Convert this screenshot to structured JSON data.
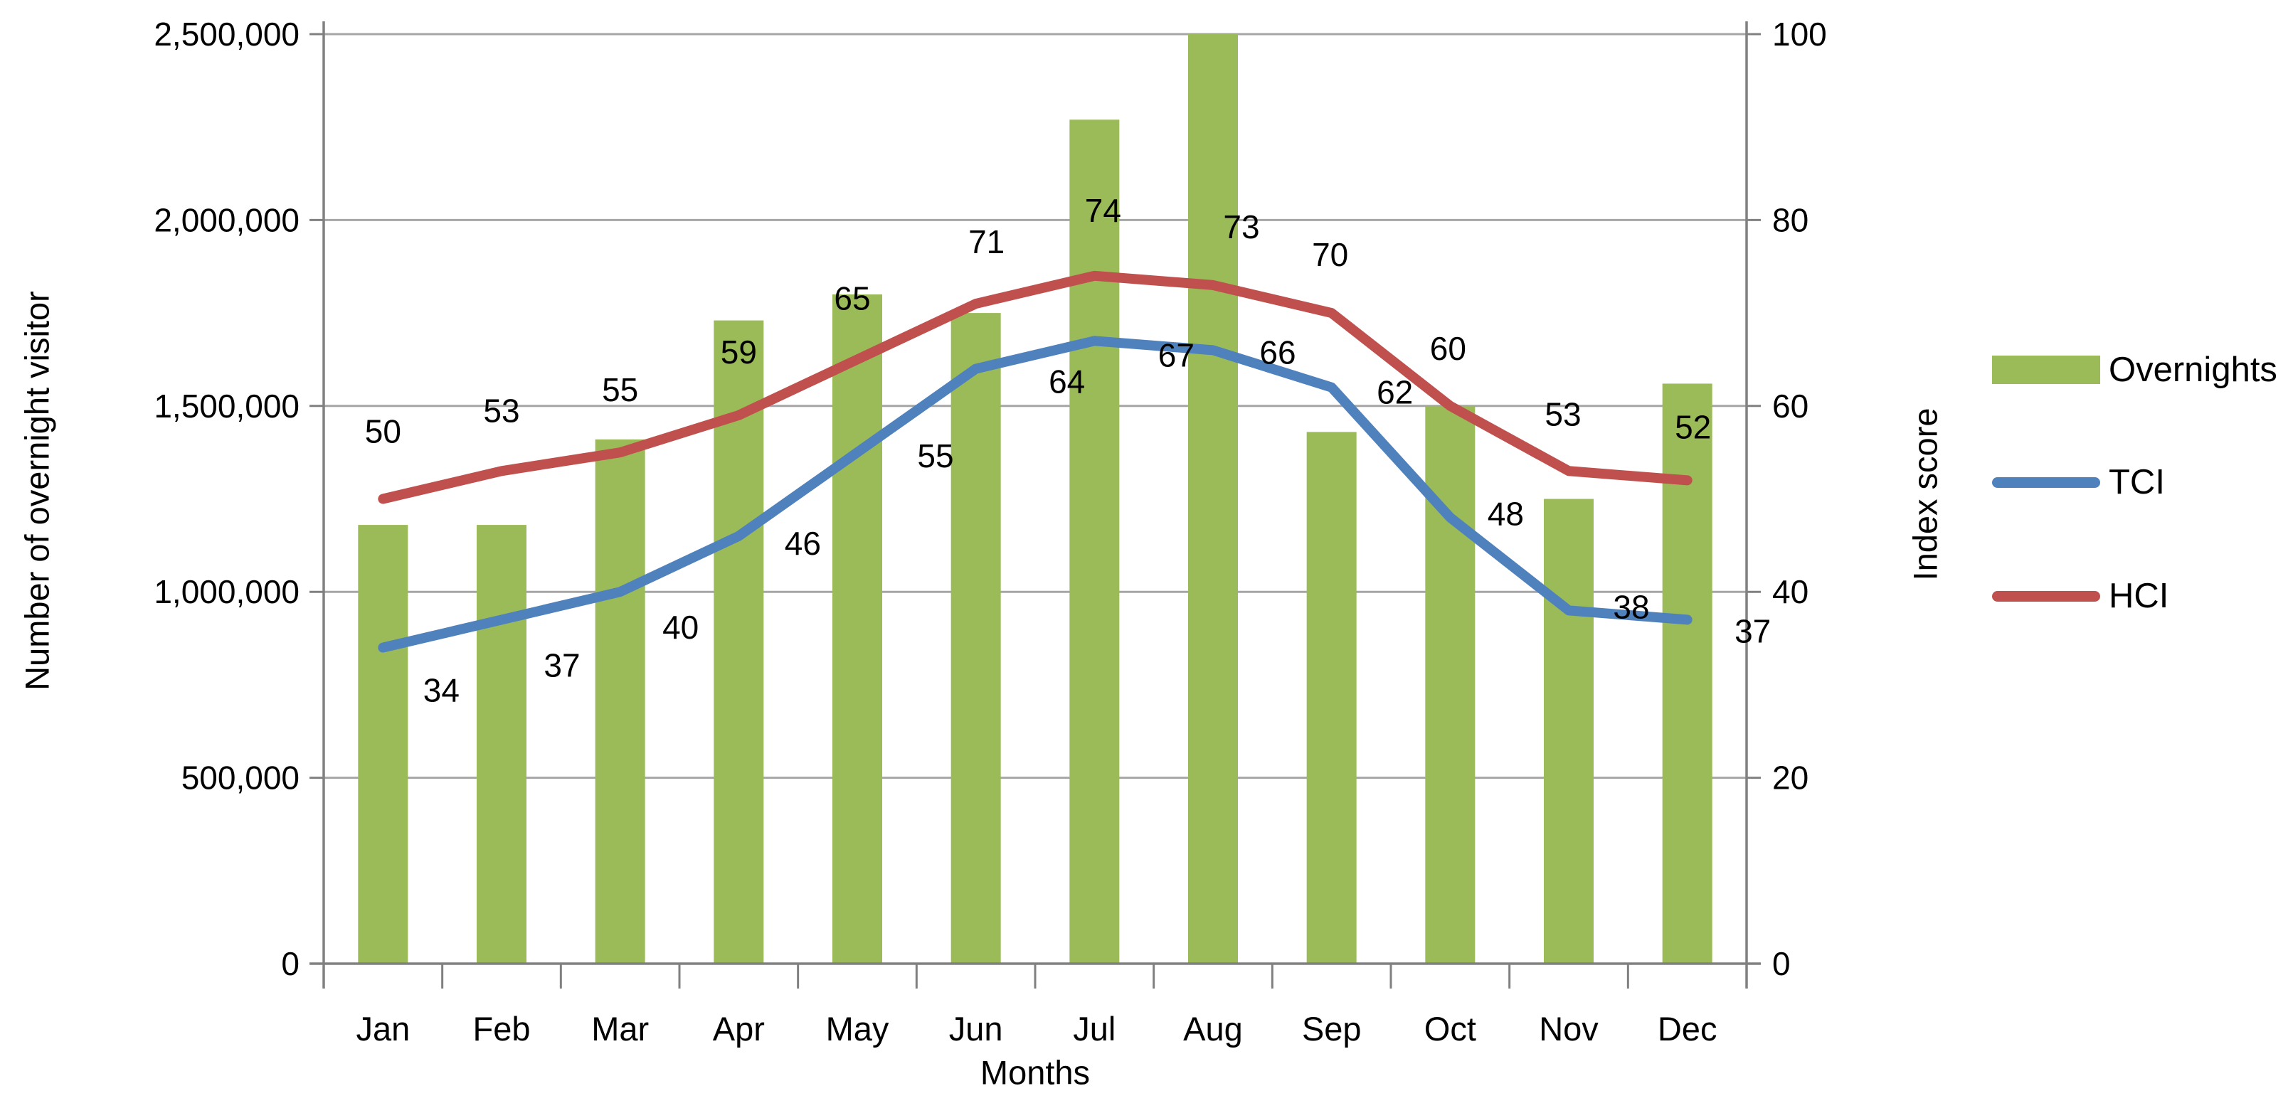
{
  "chart_data": {
    "type": "combo-bar-line",
    "title": "",
    "categories": [
      "Jan",
      "Feb",
      "Mar",
      "Apr",
      "May",
      "Jun",
      "Jul",
      "Aug",
      "Sep",
      "Oct",
      "Nov",
      "Dec"
    ],
    "series": [
      {
        "name": "Overnights",
        "type": "bar",
        "axis": "left",
        "color": "#9BBB59",
        "values": [
          1180000,
          1180000,
          1410000,
          1730000,
          1800000,
          1750000,
          2270000,
          2500000,
          1430000,
          1500000,
          1250000,
          1560000
        ]
      },
      {
        "name": "TCI",
        "type": "line",
        "axis": "right",
        "color": "#4F81BD",
        "values": [
          34,
          37,
          40,
          46,
          55,
          64,
          67,
          66,
          62,
          48,
          38,
          37
        ]
      },
      {
        "name": "HCI",
        "type": "line",
        "axis": "right",
        "color": "#C0504D",
        "values": [
          50,
          53,
          55,
          59,
          65,
          71,
          74,
          73,
          70,
          60,
          53,
          52
        ]
      }
    ],
    "left_axis": {
      "title": "Number of overnight visitor",
      "min": 0,
      "max": 2500000,
      "step": 500000,
      "tick_labels": [
        "0",
        "500,000",
        "1,000,000",
        "1,500,000",
        "2,000,000",
        "2,500,000"
      ]
    },
    "right_axis": {
      "title": "Index score",
      "min": 0,
      "max": 100,
      "step": 20,
      "tick_labels": [
        "0",
        "20",
        "40",
        "60",
        "80",
        "100"
      ]
    },
    "x_axis": {
      "title": "Months"
    },
    "legend": {
      "position": "right",
      "entries": [
        "Overnights",
        "TCI",
        "HCI"
      ]
    },
    "grid": true,
    "data_labels_shown": true,
    "colors": {
      "gridline": "#A6A6A6",
      "axis": "#808080",
      "text": "#000000",
      "background": "#FFFFFF"
    }
  }
}
